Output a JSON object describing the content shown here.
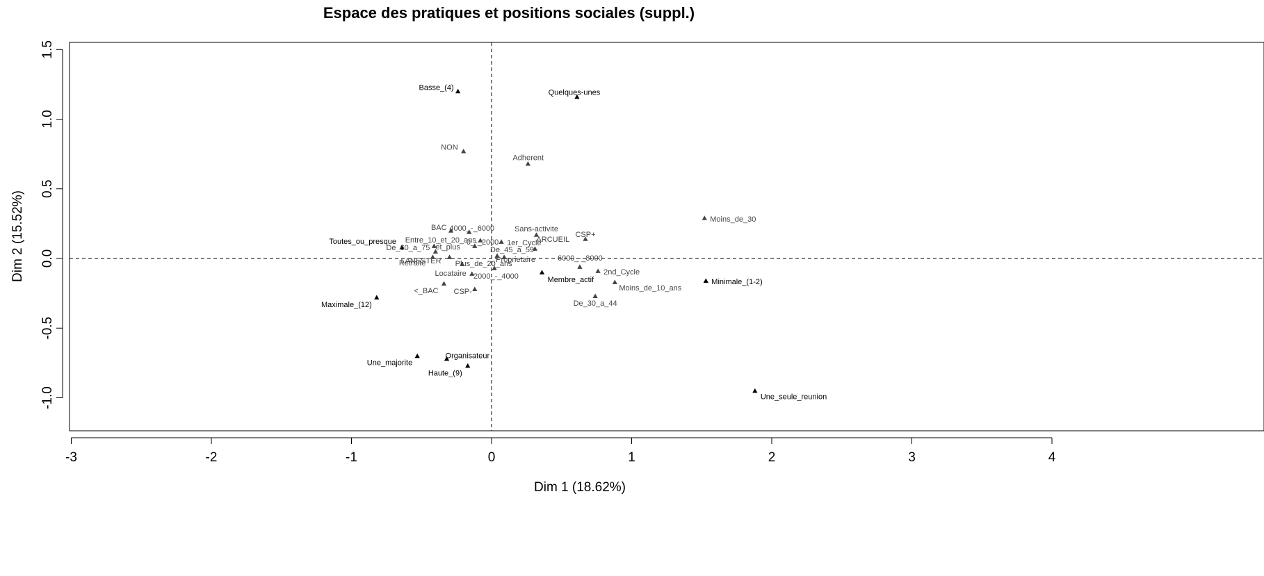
{
  "chart_data": {
    "type": "scatter",
    "title": "Espace des pratiques et positions sociales (suppl.)",
    "xlabel": "Dim 1 (18.62%)",
    "ylabel": "Dim 2 (15.52%)",
    "xlim": [
      -3,
      4
    ],
    "ylim": [
      -1,
      1.5
    ],
    "xticks": [
      "-3",
      "-2",
      "-1",
      "0",
      "1",
      "2",
      "3",
      "4"
    ],
    "yticks": [
      "-1.0",
      "-0.5",
      "0.0",
      "0.5",
      "1.0",
      "1.5"
    ],
    "colors": {
      "active": "#000000",
      "supplementary": "#444444",
      "axes": "#000000"
    },
    "points": [
      {
        "label": "Basse_(4)",
        "x": -0.24,
        "y": 1.2,
        "group": "active"
      },
      {
        "label": "Quelques-unes",
        "x": 0.61,
        "y": 1.16,
        "group": "active"
      },
      {
        "label": "NON",
        "x": -0.2,
        "y": 0.77,
        "group": "supplementary"
      },
      {
        "label": "Adherent",
        "x": 0.26,
        "y": 0.68,
        "group": "supplementary"
      },
      {
        "label": "Moins_de_30",
        "x": 1.52,
        "y": 0.29,
        "group": "supplementary"
      },
      {
        "label": "BAC",
        "x": -0.29,
        "y": 0.2,
        "group": "supplementary"
      },
      {
        "label": "4000_-_6000",
        "x": -0.16,
        "y": 0.19,
        "group": "supplementary"
      },
      {
        "label": "Sans-activite",
        "x": 0.32,
        "y": 0.17,
        "group": "supplementary"
      },
      {
        "label": "CSP+",
        "x": 0.67,
        "y": 0.14,
        "group": "supplementary"
      },
      {
        "label": "Toutes_ou_presque",
        "x": -0.64,
        "y": 0.08,
        "group": "active"
      },
      {
        "label": "Entre_10_et_20_ans",
        "x": -0.08,
        "y": 0.13,
        "group": "supplementary"
      },
      {
        "label": "1er_Cycle",
        "x": 0.07,
        "y": 0.12,
        "group": "supplementary"
      },
      {
        "label": "ARCUEIL",
        "x": 0.31,
        "y": 0.07,
        "group": "supplementary"
      },
      {
        "label": "De_60_a_75",
        "x": -0.4,
        "y": 0.05,
        "group": "supplementary"
      },
      {
        "label": "et_plus",
        "x": -0.41,
        "y": 0.09,
        "group": "supplementary"
      },
      {
        "label": "0_-_2000",
        "x": -0.12,
        "y": 0.09,
        "group": "supplementary"
      },
      {
        "label": "De_45_a_59",
        "x": 0.04,
        "y": 0.02,
        "group": "supplementary"
      },
      {
        "label": "Proprietaire",
        "x": 0.09,
        "y": 0.01,
        "group": "supplementary"
      },
      {
        "label": "Retraite",
        "x": -0.42,
        "y": 0.01,
        "group": "supplementary"
      },
      {
        "label": "Plus_de_20_ans",
        "x": -0.21,
        "y": -0.04,
        "group": "supplementary"
      },
      {
        "label": "6000_-_8000",
        "x": 0.63,
        "y": -0.06,
        "group": "supplementary"
      },
      {
        "label": "LANESTER",
        "x": -0.3,
        "y": 0.01,
        "group": "supplementary"
      },
      {
        "label": "2000_-_4000",
        "x": 0.02,
        "y": -0.07,
        "group": "supplementary"
      },
      {
        "label": "Locataire",
        "x": -0.14,
        "y": -0.11,
        "group": "supplementary"
      },
      {
        "label": "Membre_actif",
        "x": 0.36,
        "y": -0.1,
        "group": "active"
      },
      {
        "label": "2nd_Cycle",
        "x": 0.76,
        "y": -0.09,
        "group": "supplementary"
      },
      {
        "label": "Minimale_(1-2)",
        "x": 1.53,
        "y": -0.16,
        "group": "active"
      },
      {
        "label": "Moins_de_10_ans",
        "x": 0.88,
        "y": -0.17,
        "group": "supplementary"
      },
      {
        "label": "<_BAC",
        "x": -0.34,
        "y": -0.18,
        "group": "supplementary"
      },
      {
        "label": "CSP-",
        "x": -0.12,
        "y": -0.22,
        "group": "supplementary"
      },
      {
        "label": "De_30_a_44",
        "x": 0.74,
        "y": -0.27,
        "group": "supplementary"
      },
      {
        "label": "Maximale_(12)",
        "x": -0.82,
        "y": -0.28,
        "group": "active"
      },
      {
        "label": "Une_majorite",
        "x": -0.53,
        "y": -0.7,
        "group": "active"
      },
      {
        "label": "Organisateur",
        "x": -0.32,
        "y": -0.72,
        "group": "active"
      },
      {
        "label": "Haute_(9)",
        "x": -0.17,
        "y": -0.77,
        "group": "active"
      },
      {
        "label": "Une_seule_reunion",
        "x": 1.88,
        "y": -0.95,
        "group": "active"
      }
    ]
  }
}
